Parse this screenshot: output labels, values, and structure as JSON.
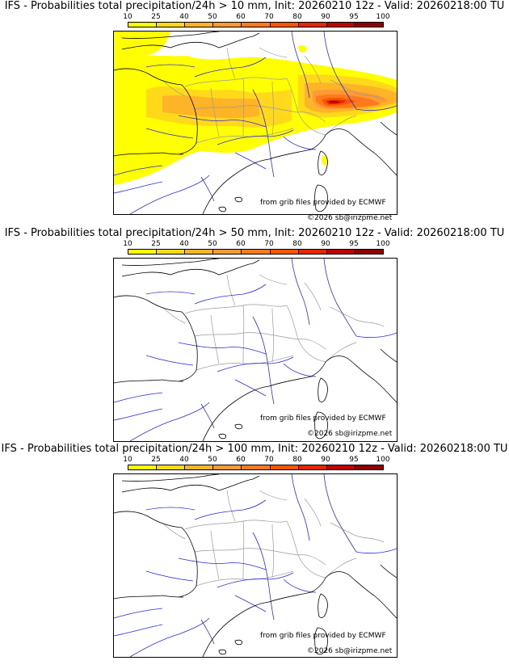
{
  "panels": [
    {
      "title": "IFS - Probabilities total precipitation/24h > 10 mm, Init: 20260210 12z - Valid: 20260218:00 TU",
      "coverage": "high"
    },
    {
      "title": "IFS - Probabilities total precipitation/24h > 50 mm, Init: 20260210 12z - Valid: 20260218:00 TU",
      "coverage": "none"
    },
    {
      "title": "IFS - Probabilities total precipitation/24h > 100 mm, Init: 20260210 12z - Valid: 20260218:00 TU",
      "coverage": "none"
    }
  ],
  "scale": {
    "labels": [
      "10",
      "25",
      "40",
      "50",
      "60",
      "70",
      "80",
      "90",
      "95",
      "100"
    ],
    "colors": [
      "#ffff00",
      "#ffd91a",
      "#ffb326",
      "#ff9933",
      "#ff7a1a",
      "#ff5500",
      "#e62600",
      "#c00000",
      "#900000",
      "#600000"
    ]
  },
  "credits": {
    "source": "from grib files provided by ECMWF",
    "copyright": "©2026 sb@irizpme.net"
  },
  "map_colors": {
    "coast": "#000000",
    "rivers": "#2b2bd9",
    "borders": "#9a9a9a"
  }
}
